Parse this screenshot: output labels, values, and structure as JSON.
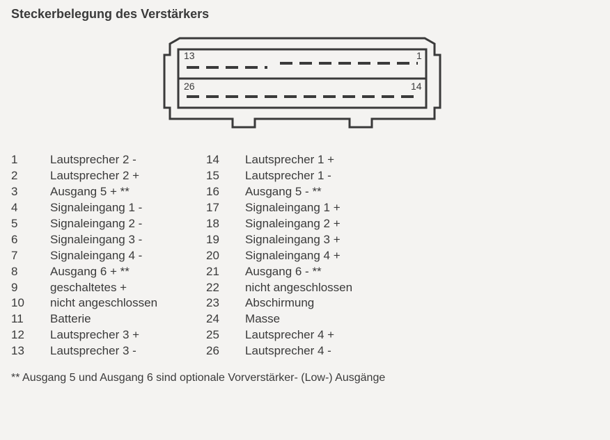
{
  "title": "Steckerbelegung des Verstärkers",
  "connector": {
    "top_left_label": "13",
    "top_right_label": "1",
    "bottom_left_label": "26",
    "bottom_right_label": "14",
    "stroke_color": "#3a3a3a",
    "background": "#f4f3f1",
    "label_fontsize": 14
  },
  "pins_left": [
    {
      "n": "1",
      "label": "Lautsprecher 2 -"
    },
    {
      "n": "2",
      "label": "Lautsprecher 2 +"
    },
    {
      "n": "3",
      "label": "Ausgang 5 + **"
    },
    {
      "n": "4",
      "label": "Signaleingang 1 -"
    },
    {
      "n": "5",
      "label": "Signaleingang 2 -"
    },
    {
      "n": "6",
      "label": "Signaleingang 3 -"
    },
    {
      "n": "7",
      "label": "Signaleingang 4 -"
    },
    {
      "n": "8",
      "label": "Ausgang 6 + **"
    },
    {
      "n": "9",
      "label": "geschaltetes +"
    },
    {
      "n": "10",
      "label": "nicht angeschlossen"
    },
    {
      "n": "11",
      "label": "Batterie"
    },
    {
      "n": "12",
      "label": "Lautsprecher 3 +"
    },
    {
      "n": "13",
      "label": "Lautsprecher 3 -"
    }
  ],
  "pins_right": [
    {
      "n": "14",
      "label": "Lautsprecher 1 +"
    },
    {
      "n": "15",
      "label": "Lautsprecher 1 -"
    },
    {
      "n": "16",
      "label": "Ausgang 5 - **"
    },
    {
      "n": "17",
      "label": "Signaleingang 1 +"
    },
    {
      "n": "18",
      "label": "Signaleingang 2 +"
    },
    {
      "n": "19",
      "label": "Signaleingang 3 +"
    },
    {
      "n": "20",
      "label": "Signaleingang 4 +"
    },
    {
      "n": "21",
      "label": "Ausgang 6 - **"
    },
    {
      "n": "22",
      "label": "nicht angeschlossen"
    },
    {
      "n": "23",
      "label": "Abschirmung"
    },
    {
      "n": "24",
      "label": "Masse"
    },
    {
      "n": "25",
      "label": "Lautsprecher 4 +"
    },
    {
      "n": "26",
      "label": "Lautsprecher 4 -"
    }
  ],
  "footnote": "** Ausgang 5 und Ausgang 6 sind optionale Vorverstärker- (Low-) Ausgänge"
}
